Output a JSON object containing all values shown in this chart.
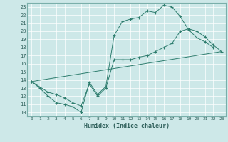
{
  "xlabel": "Humidex (Indice chaleur)",
  "xlim": [
    -0.5,
    23.5
  ],
  "ylim": [
    9.5,
    23.5
  ],
  "xticks": [
    0,
    1,
    2,
    3,
    4,
    5,
    6,
    7,
    8,
    9,
    10,
    11,
    12,
    13,
    14,
    15,
    16,
    17,
    18,
    19,
    20,
    21,
    22,
    23
  ],
  "yticks": [
    10,
    11,
    12,
    13,
    14,
    15,
    16,
    17,
    18,
    19,
    20,
    21,
    22,
    23
  ],
  "bg_color": "#cde8e8",
  "line_color": "#2e7d6e",
  "line1_x": [
    0,
    1,
    2,
    3,
    4,
    5,
    6,
    7,
    8,
    9,
    10,
    11,
    12,
    13,
    14,
    15,
    16,
    17,
    18,
    19,
    20,
    21,
    22
  ],
  "line1_y": [
    13.8,
    13.0,
    12.0,
    11.2,
    11.0,
    10.7,
    10.0,
    13.7,
    12.2,
    13.2,
    19.5,
    21.2,
    21.5,
    21.7,
    22.5,
    22.3,
    23.2,
    23.0,
    21.8,
    20.2,
    19.2,
    18.7,
    18.0
  ],
  "line2_x": [
    0,
    2,
    3,
    4,
    5,
    6,
    7,
    8,
    9,
    10,
    11,
    12,
    13,
    14,
    15,
    16,
    17,
    18,
    19,
    20,
    21,
    22,
    23
  ],
  "line2_y": [
    13.8,
    12.5,
    12.2,
    11.8,
    11.2,
    10.8,
    13.5,
    12.0,
    13.0,
    16.5,
    16.5,
    16.5,
    16.8,
    17.0,
    17.5,
    18.0,
    18.5,
    20.0,
    20.3,
    20.0,
    19.3,
    18.3,
    17.5
  ],
  "line3_x": [
    0,
    23
  ],
  "line3_y": [
    13.8,
    17.5
  ],
  "grid_color": "#b0d4d4",
  "spine_color": "#7aafaa"
}
